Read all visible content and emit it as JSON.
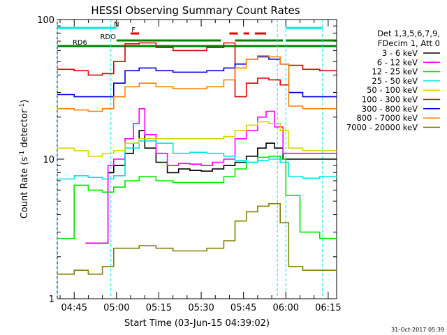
{
  "chart_data": {
    "type": "line",
    "title": "HESSI Observing Summary Count Rates",
    "xlabel": "Start Time (03-Jun-15 04:39:02)",
    "ylabel_parts": [
      "Count Rate (s",
      "-1",
      " detector",
      "-1",
      ")"
    ],
    "yscale": "log",
    "ylim": [
      1,
      100
    ],
    "xlim_minutes": [
      "04:39",
      "06:18"
    ],
    "x_ticks": [
      "04:45",
      "05:00",
      "05:15",
      "05:30",
      "05:45",
      "06:00",
      "06:15"
    ],
    "y_ticks": [
      "1",
      "10",
      "100"
    ],
    "legend_header": [
      "Det 1,3,5,6,7,9,",
      "FDecim 1, Att 0"
    ],
    "legend_placement": "right",
    "footer_date": "31-Oct-2017 05:39",
    "status_flags": [
      {
        "label": "N",
        "color": "#00e6e6",
        "segments": [
          [
            "04:39",
            "05:00"
          ],
          [
            "06:00",
            "06:13"
          ]
        ]
      },
      {
        "label": "F",
        "color": "#e00000",
        "segments": [
          [
            "05:05",
            "05:08"
          ],
          [
            "05:40",
            "05:43"
          ],
          [
            "05:45",
            "05:47"
          ],
          [
            "05:49",
            "05:53"
          ]
        ]
      },
      {
        "label": "RDO",
        "color": "#008000",
        "segments": [
          [
            "05:00",
            "05:37"
          ],
          [
            "05:42",
            "05:59"
          ],
          [
            "06:00",
            "06:18"
          ]
        ]
      },
      {
        "label": "RD6",
        "color": "#008000",
        "segments": [
          [
            "04:39",
            "05:37"
          ],
          [
            "05:37",
            "06:00"
          ],
          [
            "06:00",
            "06:18"
          ]
        ]
      }
    ],
    "series": [
      {
        "name": "3 - 6 keV",
        "color": "#000000",
        "points": [
          [
            "04:49",
            2.5
          ],
          [
            "04:57",
            8
          ],
          [
            "04:59",
            9
          ],
          [
            "05:03",
            11
          ],
          [
            "05:06",
            13
          ],
          [
            "05:08",
            16
          ],
          [
            "05:10",
            12
          ],
          [
            "05:14",
            9.5
          ],
          [
            "05:18",
            8
          ],
          [
            "05:22",
            8.5
          ],
          [
            "05:26",
            8.3
          ],
          [
            "05:30",
            8.2
          ],
          [
            "05:34",
            8.5
          ],
          [
            "05:38",
            9
          ],
          [
            "05:42",
            9.5
          ],
          [
            "05:46",
            10.5
          ],
          [
            "05:50",
            12
          ],
          [
            "05:53",
            13
          ],
          [
            "05:56",
            12
          ],
          [
            "05:59",
            10
          ]
        ]
      },
      {
        "name": "6 - 12 keV",
        "color": "#ff00ff",
        "points": [
          [
            "04:49",
            2.5
          ],
          [
            "04:57",
            9
          ],
          [
            "04:59",
            10
          ],
          [
            "05:03",
            14
          ],
          [
            "05:06",
            18
          ],
          [
            "05:08",
            23
          ],
          [
            "05:10",
            15
          ],
          [
            "05:14",
            11
          ],
          [
            "05:18",
            9
          ],
          [
            "05:22",
            9.3
          ],
          [
            "05:26",
            9.2
          ],
          [
            "05:30",
            9
          ],
          [
            "05:34",
            9.5
          ],
          [
            "05:38",
            10
          ],
          [
            "05:42",
            14
          ],
          [
            "05:46",
            16
          ],
          [
            "05:50",
            20
          ],
          [
            "05:53",
            22
          ],
          [
            "05:56",
            17
          ],
          [
            "05:59",
            11
          ]
        ]
      },
      {
        "name": "12 - 25 keV",
        "color": "#00e600",
        "points": [
          [
            "04:39",
            2.7
          ],
          [
            "04:45",
            6.5
          ],
          [
            "04:50",
            6
          ],
          [
            "04:55",
            5.8
          ],
          [
            "04:59",
            6.3
          ],
          [
            "05:03",
            7
          ],
          [
            "05:08",
            7.5
          ],
          [
            "05:14",
            7
          ],
          [
            "05:20",
            6.8
          ],
          [
            "05:26",
            6.8
          ],
          [
            "05:32",
            6.8
          ],
          [
            "05:38",
            7.5
          ],
          [
            "05:42",
            8.5
          ],
          [
            "05:46",
            9.5
          ],
          [
            "05:50",
            10.3
          ],
          [
            "05:54",
            10.5
          ],
          [
            "05:58",
            10
          ],
          [
            "06:00",
            5.5
          ],
          [
            "06:05",
            3
          ],
          [
            "06:12",
            2.7
          ]
        ]
      },
      {
        "name": "25 - 50 keV",
        "color": "#00e6e6",
        "points": [
          [
            "04:39",
            7.2
          ],
          [
            "04:45",
            7.6
          ],
          [
            "04:50",
            7.4
          ],
          [
            "04:55",
            7.2
          ],
          [
            "04:59",
            7.6
          ],
          [
            "05:03",
            12
          ],
          [
            "05:08",
            13.5
          ],
          [
            "05:14",
            13
          ],
          [
            "05:20",
            11
          ],
          [
            "05:26",
            11.2
          ],
          [
            "05:32",
            11
          ],
          [
            "05:38",
            10.5
          ],
          [
            "05:42",
            9.8
          ],
          [
            "05:46",
            9.5
          ],
          [
            "05:50",
            9.8
          ],
          [
            "05:54",
            10
          ],
          [
            "05:58",
            9.5
          ],
          [
            "06:01",
            7.5
          ],
          [
            "06:06",
            7.3
          ],
          [
            "06:12",
            7.5
          ]
        ]
      },
      {
        "name": "50 - 100 keV",
        "color": "#d6d600",
        "points": [
          [
            "04:39",
            12
          ],
          [
            "04:45",
            11.5
          ],
          [
            "04:50",
            10.5
          ],
          [
            "04:55",
            11
          ],
          [
            "04:59",
            11.5
          ],
          [
            "05:03",
            13
          ],
          [
            "05:08",
            14
          ],
          [
            "05:14",
            14
          ],
          [
            "05:20",
            14
          ],
          [
            "05:26",
            14
          ],
          [
            "05:32",
            14
          ],
          [
            "05:38",
            14.5
          ],
          [
            "05:42",
            16
          ],
          [
            "05:46",
            17.5
          ],
          [
            "05:50",
            18.5
          ],
          [
            "05:54",
            18
          ],
          [
            "05:58",
            16
          ],
          [
            "06:01",
            12
          ],
          [
            "06:06",
            11.5
          ],
          [
            "06:12",
            11.5
          ]
        ]
      },
      {
        "name": "100 - 300 keV",
        "color": "#e00000",
        "points": [
          [
            "04:39",
            44
          ],
          [
            "04:45",
            43
          ],
          [
            "04:50",
            40
          ],
          [
            "04:55",
            41
          ],
          [
            "04:59",
            50
          ],
          [
            "05:03",
            67
          ],
          [
            "05:08",
            68
          ],
          [
            "05:14",
            63
          ],
          [
            "05:20",
            60
          ],
          [
            "05:26",
            60
          ],
          [
            "05:32",
            63
          ],
          [
            "05:38",
            68
          ],
          [
            "05:42",
            28
          ],
          [
            "05:46",
            35
          ],
          [
            "05:50",
            38
          ],
          [
            "05:54",
            37
          ],
          [
            "05:58",
            34
          ],
          [
            "06:01",
            47
          ],
          [
            "06:06",
            44
          ],
          [
            "06:12",
            43
          ]
        ]
      },
      {
        "name": "300 - 800 keV",
        "color": "#0000e6",
        "points": [
          [
            "04:39",
            29
          ],
          [
            "04:45",
            28
          ],
          [
            "04:50",
            28
          ],
          [
            "04:55",
            28
          ],
          [
            "04:59",
            35
          ],
          [
            "05:03",
            43
          ],
          [
            "05:08",
            45
          ],
          [
            "05:14",
            43
          ],
          [
            "05:20",
            42
          ],
          [
            "05:26",
            42
          ],
          [
            "05:32",
            43
          ],
          [
            "05:38",
            45
          ],
          [
            "05:42",
            48
          ],
          [
            "05:46",
            52
          ],
          [
            "05:50",
            54
          ],
          [
            "05:54",
            52
          ],
          [
            "05:58",
            48
          ],
          [
            "06:01",
            30
          ],
          [
            "06:06",
            28
          ],
          [
            "06:12",
            28
          ]
        ]
      },
      {
        "name": "800 - 7000 keV",
        "color": "#ff8000",
        "points": [
          [
            "04:39",
            23
          ],
          [
            "04:45",
            22.5
          ],
          [
            "04:50",
            22
          ],
          [
            "04:55",
            23
          ],
          [
            "04:59",
            28
          ],
          [
            "05:03",
            33
          ],
          [
            "05:08",
            35
          ],
          [
            "05:14",
            33
          ],
          [
            "05:20",
            32
          ],
          [
            "05:26",
            32
          ],
          [
            "05:32",
            33
          ],
          [
            "05:38",
            37
          ],
          [
            "05:42",
            45
          ],
          [
            "05:46",
            52
          ],
          [
            "05:50",
            55
          ],
          [
            "05:54",
            54
          ],
          [
            "05:58",
            48
          ],
          [
            "06:01",
            24
          ],
          [
            "06:06",
            23
          ],
          [
            "06:12",
            23
          ]
        ]
      },
      {
        "name": "7000 - 20000 keV",
        "color": "#808000",
        "points": [
          [
            "04:39",
            1.5
          ],
          [
            "04:45",
            1.6
          ],
          [
            "04:50",
            1.5
          ],
          [
            "04:55",
            1.7
          ],
          [
            "04:59",
            2.3
          ],
          [
            "05:03",
            2.3
          ],
          [
            "05:08",
            2.4
          ],
          [
            "05:14",
            2.3
          ],
          [
            "05:20",
            2.2
          ],
          [
            "05:26",
            2.2
          ],
          [
            "05:32",
            2.3
          ],
          [
            "05:38",
            2.6
          ],
          [
            "05:42",
            3.6
          ],
          [
            "05:46",
            4.2
          ],
          [
            "05:50",
            4.6
          ],
          [
            "05:54",
            4.8
          ],
          [
            "05:58",
            3.5
          ],
          [
            "06:01",
            1.7
          ],
          [
            "06:06",
            1.6
          ],
          [
            "06:12",
            1.6
          ]
        ]
      }
    ]
  }
}
